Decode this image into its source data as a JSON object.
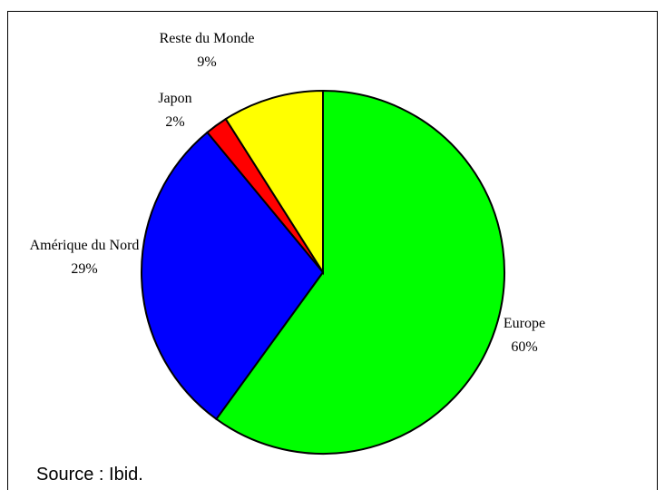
{
  "chart_data": {
    "type": "pie",
    "categories": [
      "Europe",
      "Amérique du Nord",
      "Japon",
      "Reste du Monde"
    ],
    "values": [
      60,
      29,
      2,
      9
    ],
    "value_labels": [
      "60%",
      "29%",
      "2%",
      "9%"
    ],
    "colors": [
      "#00ff00",
      "#0000ff",
      "#ff0000",
      "#ffff00"
    ],
    "start_angle": 0,
    "direction": "clockwise"
  },
  "source": "Source : Ibid."
}
